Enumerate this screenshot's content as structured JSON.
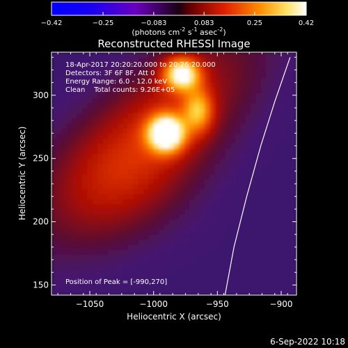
{
  "colorbar": {
    "tick_labels": [
      "-0.42",
      "-0.25",
      "-0.083",
      "0.083",
      "0.25",
      "0.42"
    ],
    "units_prefix": "(photons cm",
    "units_exp1": "-2",
    "units_mid": " s",
    "units_exp2": "-1",
    "units_mid2": " asec",
    "units_exp3": "-2",
    "units_suffix": ")",
    "range": [
      -0.42,
      0.42
    ]
  },
  "chart_data": {
    "type": "heatmap",
    "title": "Reconstructed RHESSI Image",
    "xlabel": "Heliocentric X (arcsec)",
    "ylabel": "Heliocentric Y (arcsec)",
    "xlim": [
      -1080,
      -888
    ],
    "ylim": [
      142,
      334
    ],
    "x_ticks": [
      -1050,
      -1000,
      -950,
      -900
    ],
    "x_tick_labels": [
      "−1050",
      "−1000",
      "−950",
      "−900"
    ],
    "y_ticks": [
      150,
      200,
      250,
      300
    ],
    "y_tick_labels": [
      "150",
      "200",
      "250",
      "300"
    ],
    "colormap": "rhessi-thermal",
    "peak": [
      -990,
      270
    ],
    "annotations": [
      "18-Apr-2017 20:20:20.000 to 20:26:20.000",
      "Detectors: 3F 6F 8F, Att 0",
      "Energy Range: 6.0 - 12.0 keV",
      "Clean    Total counts: 9.26E+05"
    ],
    "peak_label": "Position of Peak = [-990,270]",
    "sources": [
      {
        "x": -990,
        "y": 270,
        "sigma_x": 10,
        "sigma_y": 10,
        "amp": 0.42
      },
      {
        "x": -978,
        "y": 317,
        "sigma_x": 10,
        "sigma_y": 9,
        "amp": 0.36
      },
      {
        "x": -965,
        "y": 288,
        "sigma_x": 8,
        "sigma_y": 12,
        "amp": 0.22
      }
    ],
    "limb": [
      [
        -944,
        142
      ],
      [
        -937,
        180
      ],
      [
        -927,
        220
      ],
      [
        -916,
        260
      ],
      [
        -905,
        295
      ],
      [
        -893,
        330
      ]
    ],
    "colors": {
      "background": "#000000",
      "axes": "#ffffff",
      "limb": "#ffffff"
    }
  },
  "footer": {
    "timestamp": "6-Sep-2022 10:18"
  }
}
